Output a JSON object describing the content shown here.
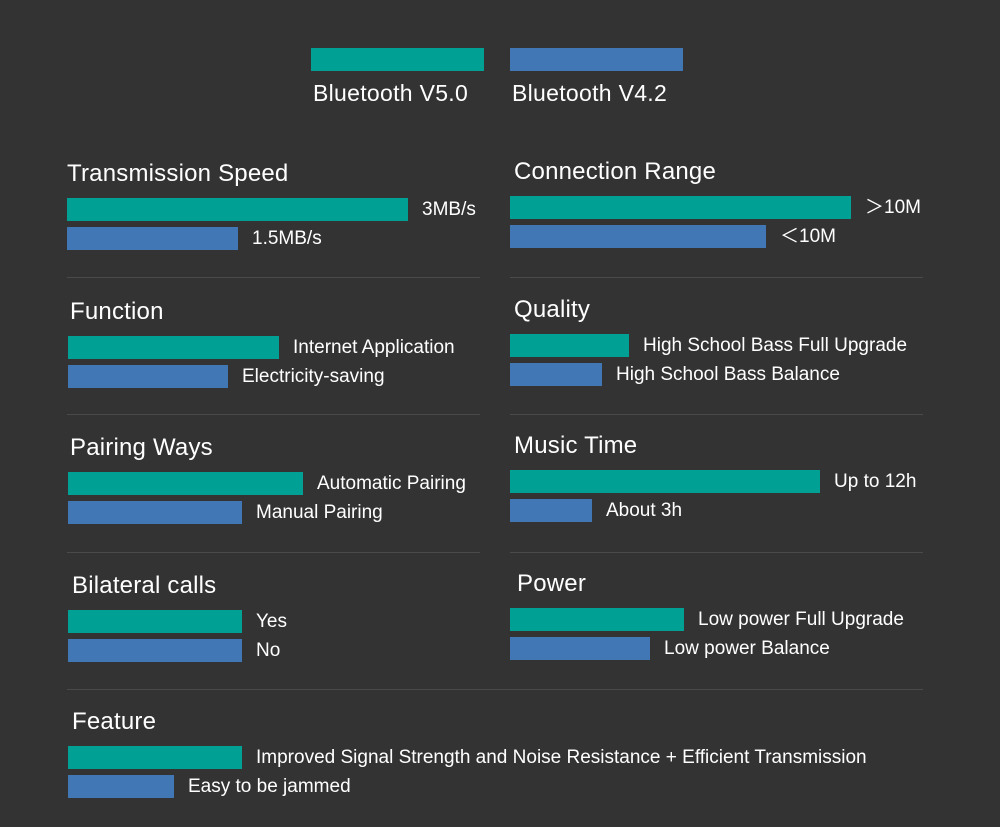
{
  "colors": {
    "background": "#333333",
    "v50": "#00A095",
    "v42": "#4177B4",
    "divider": "#4a4a4a"
  },
  "legend": [
    {
      "label": "Bluetooth V5.0",
      "color": "#00A095"
    },
    {
      "label": "Bluetooth V4.2",
      "color": "#4177B4"
    }
  ],
  "chart_data": {
    "type": "bar",
    "orientation": "horizontal",
    "title": "",
    "series_names": [
      "Bluetooth V5.0",
      "Bluetooth V4.2"
    ],
    "categories": [
      {
        "title": "Transmission Speed",
        "v50_label": "3MB/s",
        "v42_label": "1.5MB/s",
        "v50_level": 1.0,
        "v42_level": 0.5
      },
      {
        "title": "Connection Range",
        "v50_label": "＞10M",
        "v42_label": "＜10M",
        "v50_level": 1.0,
        "v42_level": 0.75
      },
      {
        "title": "Function",
        "v50_label": "Internet Application",
        "v42_label": "Electricity-saving",
        "v50_level": 0.62,
        "v42_level": 0.47
      },
      {
        "title": "Quality",
        "v50_label": "High School Bass Full Upgrade",
        "v42_label": "High School Bass Balance",
        "v50_level": 0.35,
        "v42_level": 0.27
      },
      {
        "title": "Pairing Ways",
        "v50_label": "Automatic Pairing",
        "v42_label": "Manual Pairing",
        "v50_level": 0.69,
        "v42_level": 0.51
      },
      {
        "title": "Music Time",
        "v50_label": "Up to 12h",
        "v42_label": "About 3h",
        "v50_level": 0.91,
        "v42_level": 0.24
      },
      {
        "title": "Bilateral calls",
        "v50_label": "Yes",
        "v42_label": "No",
        "v50_level": 0.51,
        "v42_level": 0.51
      },
      {
        "title": "Power",
        "v50_label": "Low power Full Upgrade",
        "v42_label": "Low power Balance",
        "v50_level": 0.51,
        "v42_level": 0.41
      },
      {
        "title": "Feature",
        "v50_label": "Improved Signal Strength and Noise Resistance + Efficient Transmission",
        "v42_label": "Easy to be jammed",
        "v50_level": 0.51,
        "v42_level": 0.31
      }
    ]
  }
}
